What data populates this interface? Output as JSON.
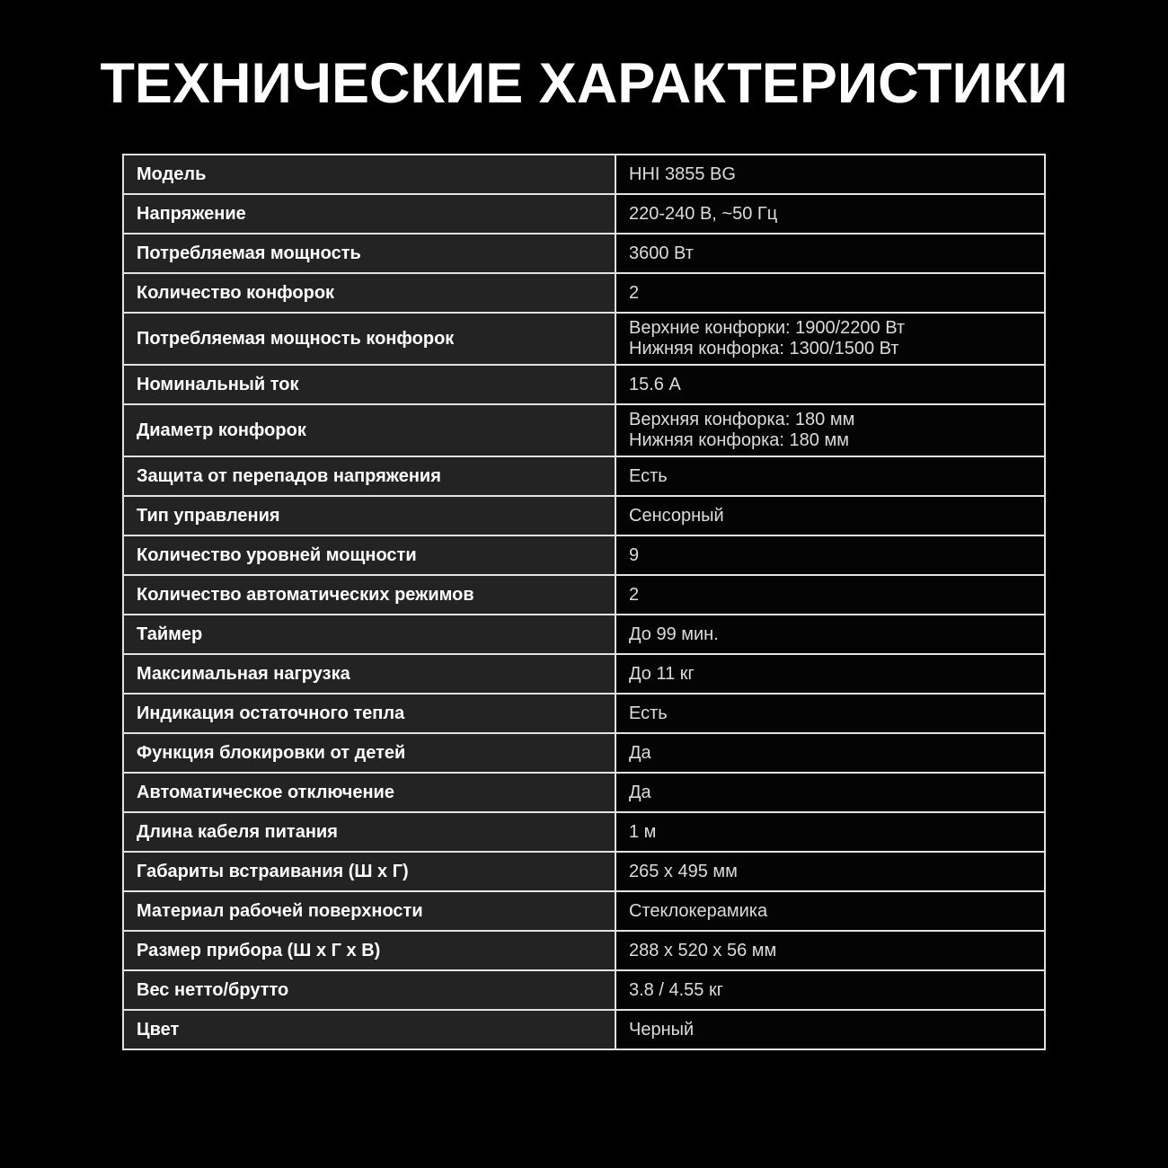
{
  "page": {
    "title": "ТЕХНИЧЕСКИЕ ХАРАКТЕРИСТИКИ"
  },
  "colors": {
    "background": "#000000",
    "label_cell_bg": "#232323",
    "value_cell_bg": "#040404",
    "border": "#e2e2e2",
    "label_text": "#ffffff",
    "value_text": "#dcdcdc"
  },
  "spec_table": {
    "rows": [
      {
        "label": "Модель",
        "value": "HHI 3855 BG"
      },
      {
        "label": "Напряжение",
        "value": "220-240 В, ~50 Гц"
      },
      {
        "label": "Потребляемая мощность",
        "value": "3600 Вт"
      },
      {
        "label": "Количество конфорок",
        "value": "2"
      },
      {
        "label": "Потребляемая мощность конфорок",
        "value": "Верхние конфорки: 1900/2200 Вт\nНижняя конфорка: 1300/1500 Вт"
      },
      {
        "label": "Номинальный ток",
        "value": "15.6 А"
      },
      {
        "label": "Диаметр конфорок",
        "value": "Верхняя конфорка: 180 мм\nНижняя конфорка: 180 мм"
      },
      {
        "label": "Защита от перепадов напряжения",
        "value": "Есть"
      },
      {
        "label": "Тип управления",
        "value": "Сенсорный"
      },
      {
        "label": "Количество уровней мощности",
        "value": "9"
      },
      {
        "label": "Количество автоматических режимов",
        "value": "2"
      },
      {
        "label": "Таймер",
        "value": "До 99 мин."
      },
      {
        "label": "Максимальная нагрузка",
        "value": "До 11 кг"
      },
      {
        "label": "Индикация остаточного тепла",
        "value": "Есть"
      },
      {
        "label": "Функция блокировки от детей",
        "value": "Да"
      },
      {
        "label": "Автоматическое отключение",
        "value": "Да"
      },
      {
        "label": "Длина кабеля питания",
        "value": "1 м"
      },
      {
        "label": "Габариты встраивания (Ш х Г)",
        "value": "265 х 495 мм"
      },
      {
        "label": "Материал рабочей поверхности",
        "value": "Стеклокерамика"
      },
      {
        "label": "Размер прибора (Ш х Г х В)",
        "value": "288 х 520 х 56 мм"
      },
      {
        "label": "Вес нетто/брутто",
        "value": "3.8 / 4.55 кг"
      },
      {
        "label": "Цвет",
        "value": "Черный"
      }
    ]
  }
}
